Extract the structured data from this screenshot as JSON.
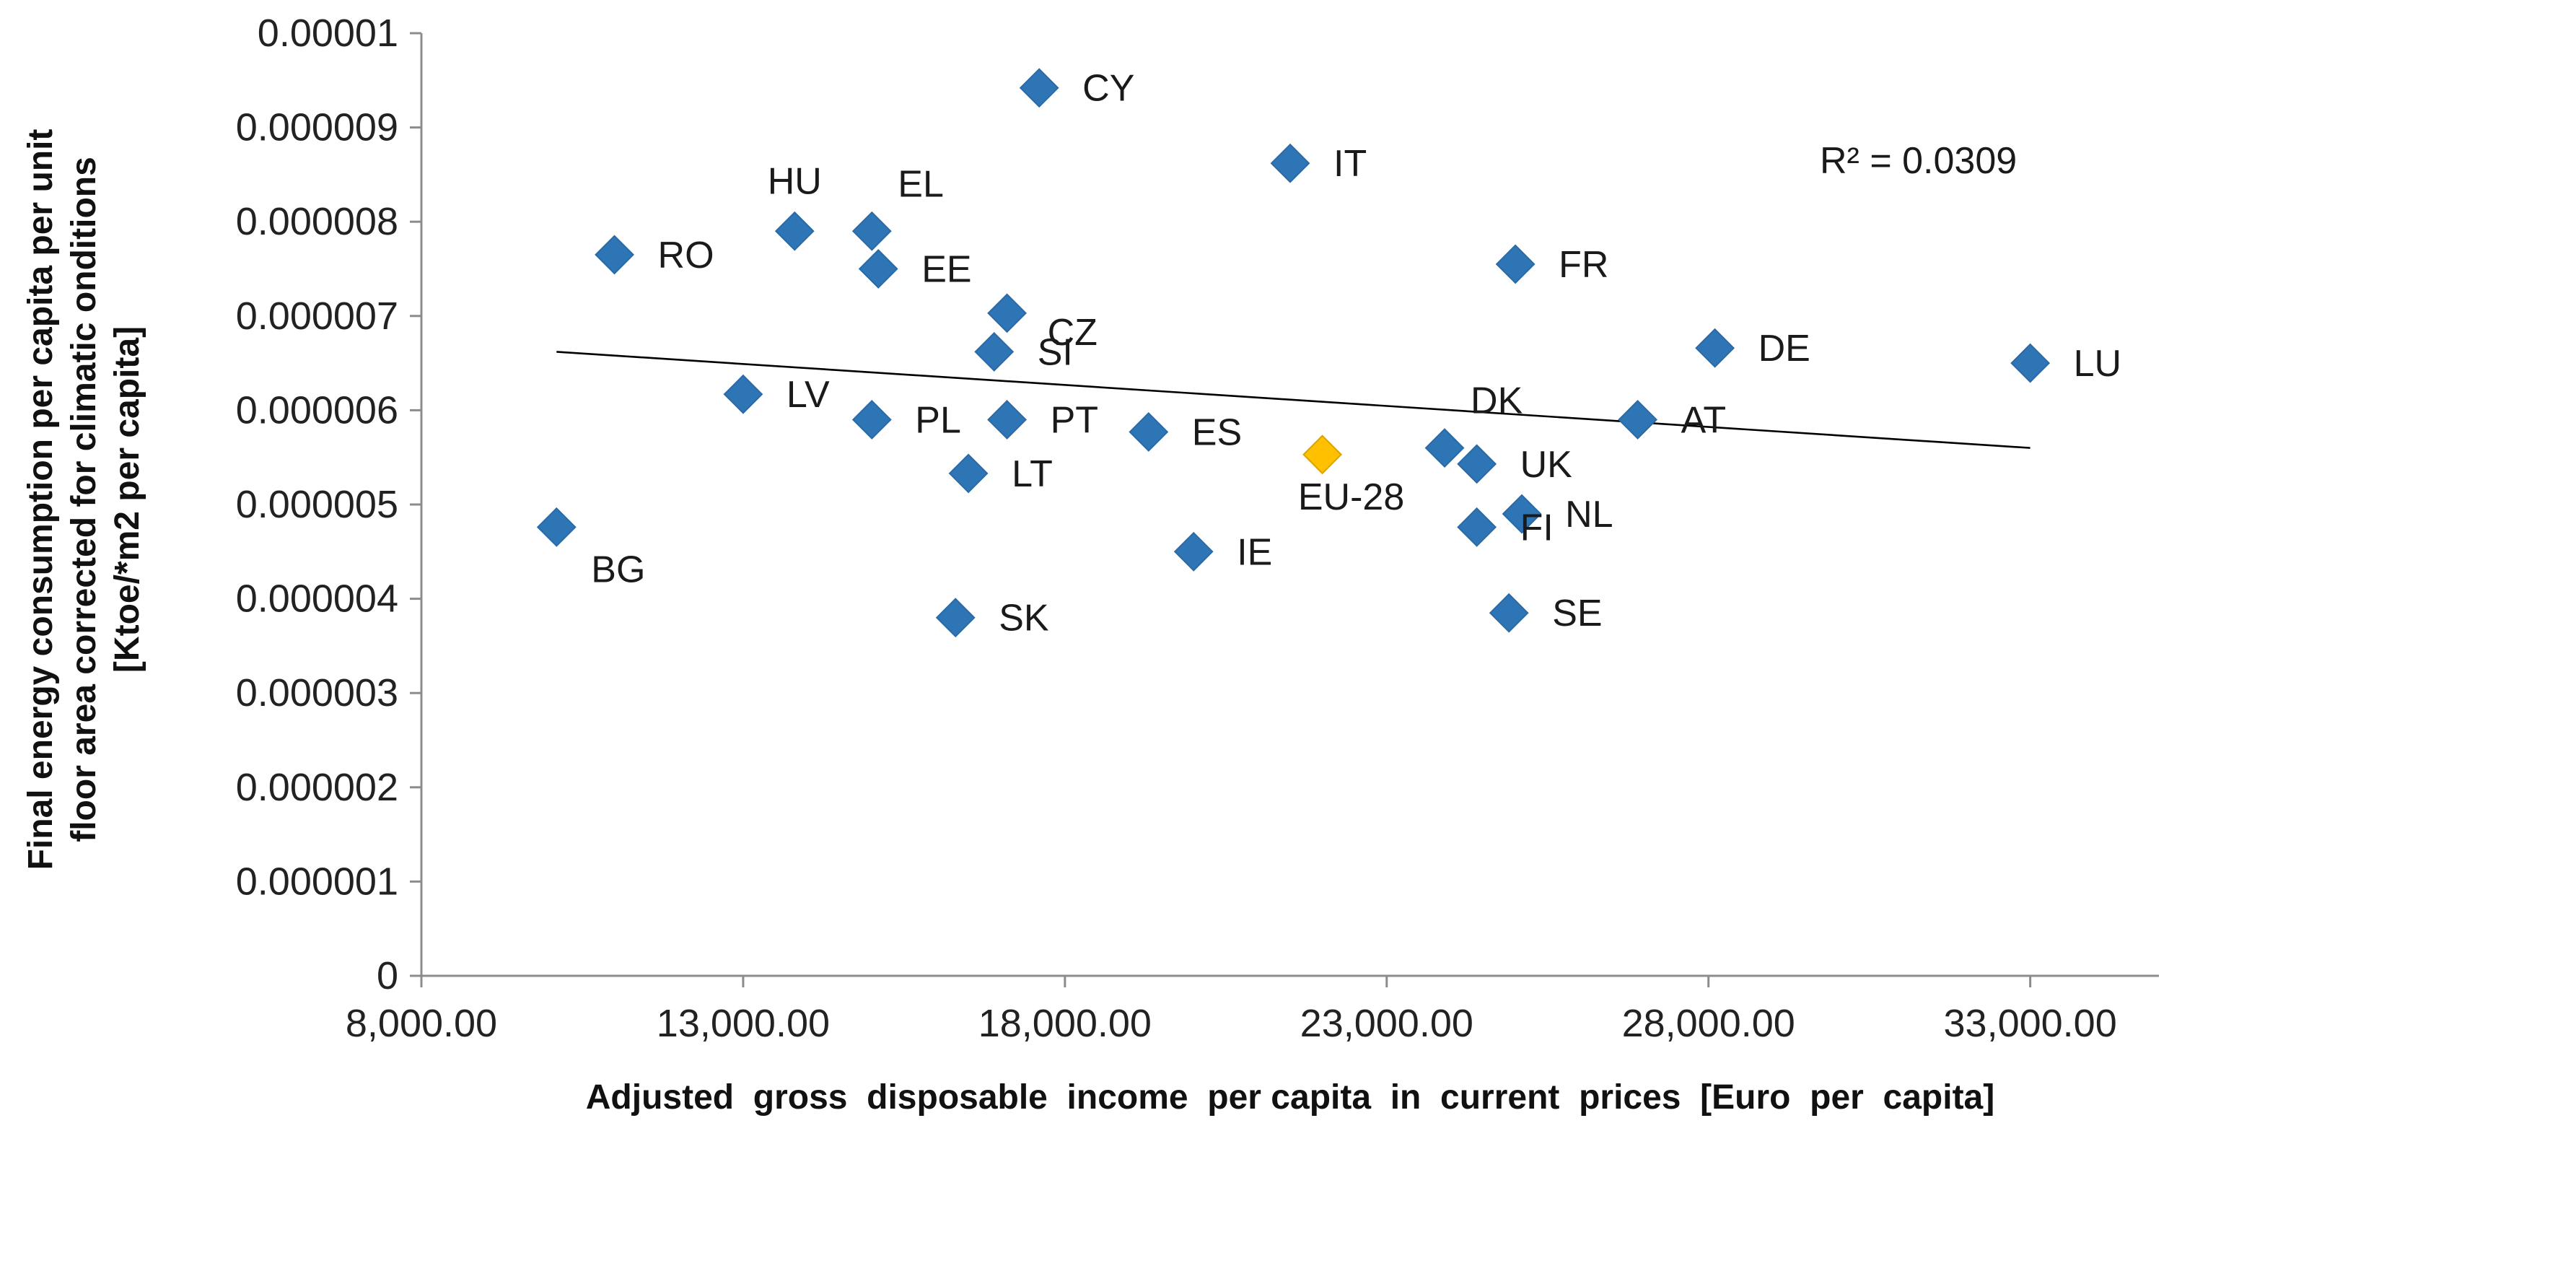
{
  "chart_data": {
    "type": "scatter",
    "title": "",
    "xlabel": "Adjusted  gross  disposable  income  per capita  in  current  prices  [Euro  per  capita]",
    "ylabel_lines": [
      "Final energy consumption  per capita per unit",
      "floor area corrected for climatic  onditions",
      "[Ktoe/*m2 per capita]"
    ],
    "xlim": [
      8000,
      35000
    ],
    "ylim": [
      0,
      1e-05
    ],
    "x_tick_values": [
      8000,
      13000,
      18000,
      23000,
      28000,
      33000
    ],
    "x_tick_labels": [
      "8,000.00",
      "13,000.00",
      "18,000.00",
      "23,000.00",
      "28,000.00",
      "33,000.00"
    ],
    "y_tick_values": [
      0,
      1e-06,
      2e-06,
      3e-06,
      4e-06,
      5e-06,
      6e-06,
      7e-06,
      8e-06,
      9e-06,
      1e-05
    ],
    "y_tick_labels": [
      "0",
      "0.000001",
      "0.000002",
      "0.000003",
      "0.000004",
      "0.000005",
      "0.000006",
      "0.000007",
      "0.000008",
      "0.000009",
      "0.00001"
    ],
    "colors": {
      "point": "#2e75b6",
      "highlight": "#ffc000",
      "trend": "#000000",
      "axis": "#8c8c8c"
    },
    "points": [
      {
        "label": "CY",
        "x": 17600,
        "y": 9.42e-06,
        "label_pos": "right"
      },
      {
        "label": "IT",
        "x": 21500,
        "y": 8.62e-06,
        "label_pos": "right"
      },
      {
        "label": "HU",
        "x": 13800,
        "y": 7.9e-06,
        "label_pos": "above"
      },
      {
        "label": "EL",
        "x": 15000,
        "y": 7.9e-06,
        "label_pos": "above-right"
      },
      {
        "label": "RO",
        "x": 11000,
        "y": 7.65e-06,
        "label_pos": "right"
      },
      {
        "label": "EE",
        "x": 15100,
        "y": 7.5e-06,
        "label_pos": "right"
      },
      {
        "label": "FR",
        "x": 25000,
        "y": 7.55e-06,
        "label_pos": "right"
      },
      {
        "label": "CZ",
        "x": 17100,
        "y": 7.03e-06,
        "label_pos": "right-below"
      },
      {
        "label": "SI",
        "x": 16900,
        "y": 6.62e-06,
        "label_pos": "right"
      },
      {
        "label": "DE",
        "x": 28100,
        "y": 6.66e-06,
        "label_pos": "right"
      },
      {
        "label": "LU",
        "x": 33000,
        "y": 6.5e-06,
        "label_pos": "right"
      },
      {
        "label": "LV",
        "x": 13000,
        "y": 6.17e-06,
        "label_pos": "right"
      },
      {
        "label": "PL",
        "x": 15000,
        "y": 5.9e-06,
        "label_pos": "right"
      },
      {
        "label": "PT",
        "x": 17100,
        "y": 5.9e-06,
        "label_pos": "right"
      },
      {
        "label": "ES",
        "x": 19300,
        "y": 5.77e-06,
        "label_pos": "right"
      },
      {
        "label": "AT",
        "x": 26900,
        "y": 5.9e-06,
        "label_pos": "right"
      },
      {
        "label": "DK",
        "x": 23900,
        "y": 5.6e-06,
        "label_pos": "above-right"
      },
      {
        "label": "UK",
        "x": 24400,
        "y": 5.43e-06,
        "label_pos": "right"
      },
      {
        "label": "EU-28",
        "x": 22000,
        "y": 5.53e-06,
        "label_pos": "below",
        "highlight": true
      },
      {
        "label": "LT",
        "x": 16500,
        "y": 5.33e-06,
        "label_pos": "right"
      },
      {
        "label": "NL",
        "x": 25100,
        "y": 4.9e-06,
        "label_pos": "right"
      },
      {
        "label": "FI",
        "x": 24400,
        "y": 4.76e-06,
        "label_pos": "right"
      },
      {
        "label": "BG",
        "x": 10100,
        "y": 4.76e-06,
        "label_pos": "below-right"
      },
      {
        "label": "IE",
        "x": 20000,
        "y": 4.5e-06,
        "label_pos": "right"
      },
      {
        "label": "SE",
        "x": 24900,
        "y": 3.85e-06,
        "label_pos": "right"
      },
      {
        "label": "SK",
        "x": 16300,
        "y": 3.8e-06,
        "label_pos": "right"
      }
    ],
    "trendline": {
      "x": [
        10100,
        33000
      ],
      "y": [
        6.62e-06,
        5.6e-06
      ]
    },
    "r_squared_text": "R² = 0.0309"
  }
}
